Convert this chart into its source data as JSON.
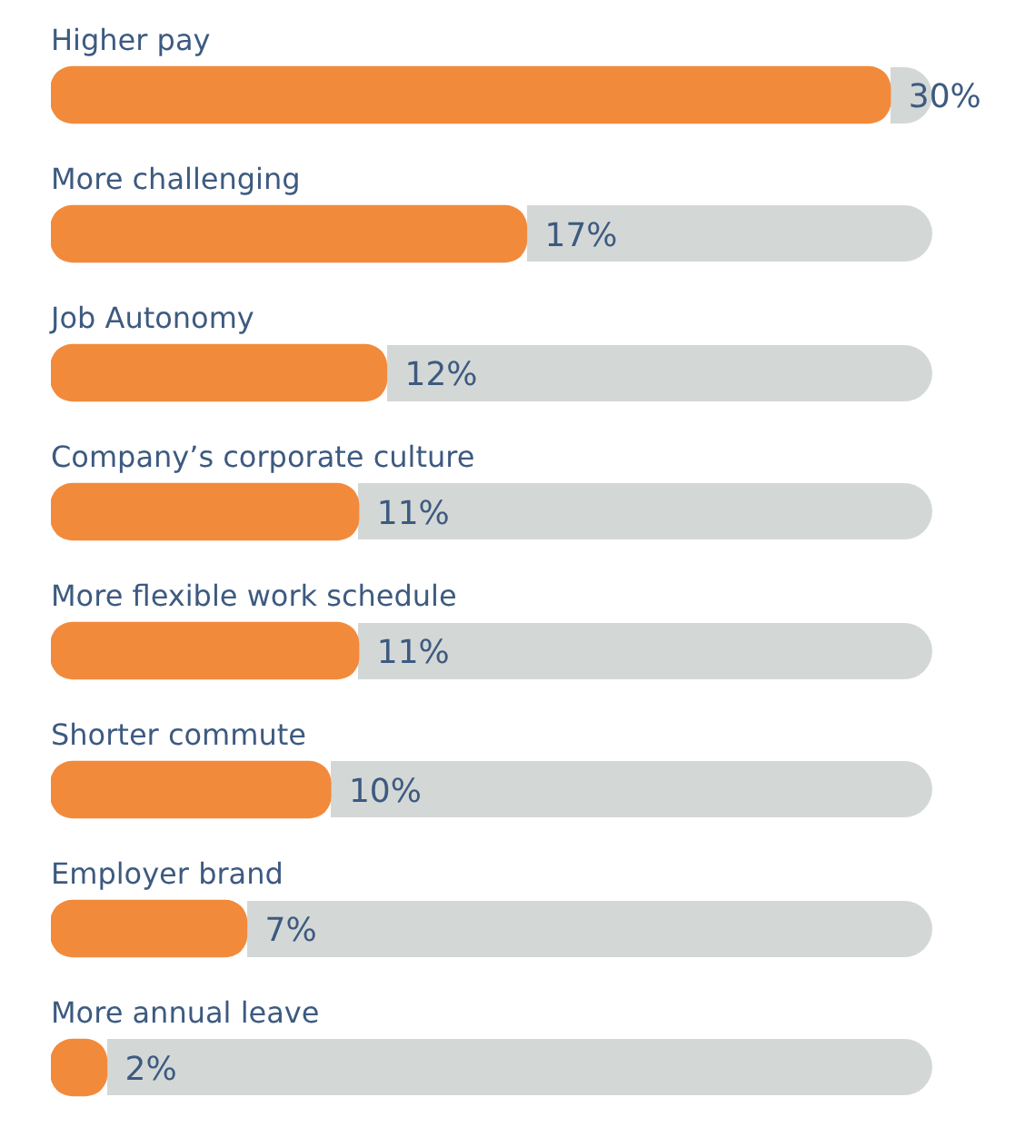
{
  "chart_data": {
    "type": "bar",
    "orientation": "horizontal",
    "categories": [
      "Higher pay",
      "More challenging",
      "Job Autonomy",
      "Company’s corporate culture",
      "More flexible work schedule",
      "Shorter commute",
      "Employer brand",
      "More annual leave"
    ],
    "values": [
      30,
      17,
      12,
      11,
      11,
      10,
      7,
      2
    ],
    "value_labels": [
      "30%",
      "17%",
      "12%",
      "11%",
      "11%",
      "10%",
      "7%",
      "2%"
    ],
    "color": "#f28a3c",
    "xlim": [
      0,
      31.5
    ],
    "tick_labels": false
  }
}
